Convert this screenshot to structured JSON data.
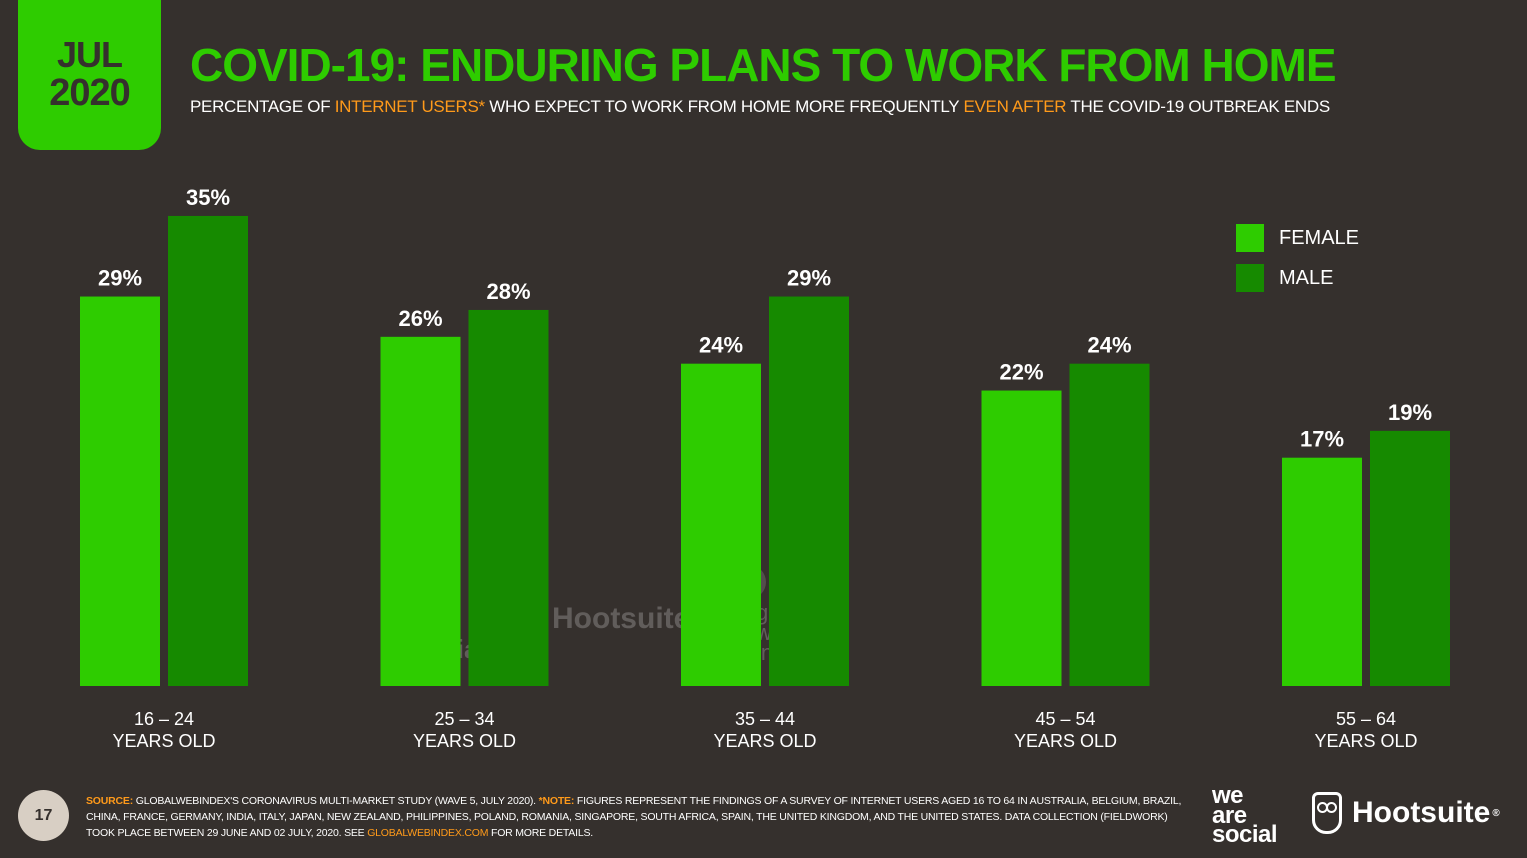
{
  "header": {
    "month": "JUL",
    "year": "2020",
    "title": "COVID-19: ENDURING PLANS TO WORK FROM HOME",
    "subtitle_part1": "PERCENTAGE OF ",
    "subtitle_highlight1": "INTERNET USERS*",
    "subtitle_part2": " WHO EXPECT TO WORK FROM HOME MORE FREQUENTLY ",
    "subtitle_highlight2": "EVEN AFTER",
    "subtitle_part3": " THE COVID-19 OUTBREAK ENDS"
  },
  "colors": {
    "background": "#35302d",
    "accent": "#2ecc00",
    "female": "#2ecc00",
    "male": "#168a00",
    "highlight": "#ff9a1a"
  },
  "chart_data": {
    "type": "bar",
    "title": "COVID-19: ENDURING PLANS TO WORK FROM HOME",
    "subtitle": "PERCENTAGE OF INTERNET USERS* WHO EXPECT TO WORK FROM HOME MORE FREQUENTLY EVEN AFTER THE COVID-19 OUTBREAK ENDS",
    "categories": [
      {
        "line1": "16 – 24",
        "line2": "YEARS OLD"
      },
      {
        "line1": "25 – 34",
        "line2": "YEARS OLD"
      },
      {
        "line1": "35 – 44",
        "line2": "YEARS OLD"
      },
      {
        "line1": "45 – 54",
        "line2": "YEARS OLD"
      },
      {
        "line1": "55 – 64",
        "line2": "YEARS OLD"
      }
    ],
    "series": [
      {
        "name": "FEMALE",
        "color": "#2ecc00",
        "values": [
          29,
          26,
          24,
          22,
          17
        ],
        "labels": [
          "29%",
          "26%",
          "24%",
          "22%",
          "17%"
        ]
      },
      {
        "name": "MALE",
        "color": "#168a00",
        "values": [
          35,
          28,
          29,
          24,
          19
        ],
        "labels": [
          "35%",
          "28%",
          "29%",
          "24%",
          "19%"
        ]
      }
    ],
    "unit": "%",
    "ylim": [
      0,
      35
    ],
    "grid": false,
    "legend": "top-right"
  },
  "watermarks": {
    "wearesocial": [
      "we",
      "are",
      "social"
    ],
    "hootsuite": "Hootsuite",
    "gwi": [
      "global",
      "web",
      "index"
    ]
  },
  "footer": {
    "page_number": "17",
    "source_label": "SOURCE:",
    "source_text": " GLOBALWEBINDEX'S CORONAVIRUS MULTI-MARKET STUDY (WAVE 5, JULY 2020). ",
    "note_label": "*NOTE:",
    "note_text": " FIGURES REPRESENT THE FINDINGS OF A SURVEY OF INTERNET USERS AGED 16 TO 64 IN AUSTRALIA, BELGIUM, BRAZIL, CHINA, FRANCE, GERMANY, INDIA, ITALY, JAPAN, NEW ZEALAND, PHILIPPINES, POLAND, ROMANIA, SINGAPORE, SOUTH AFRICA, SPAIN, THE UNITED KINGDOM, AND THE UNITED STATES. DATA COLLECTION (FIELDWORK) TOOK PLACE BETWEEN 29 JUNE AND 02 JULY, 2020. SEE ",
    "link_text": "GLOBALWEBINDEX.COM",
    "tail_text": " FOR MORE DETAILS.",
    "logo_wearesocial": [
      "we",
      "are",
      "social"
    ],
    "logo_hootsuite": "Hootsuite",
    "logo_hootsuite_reg": "®"
  }
}
